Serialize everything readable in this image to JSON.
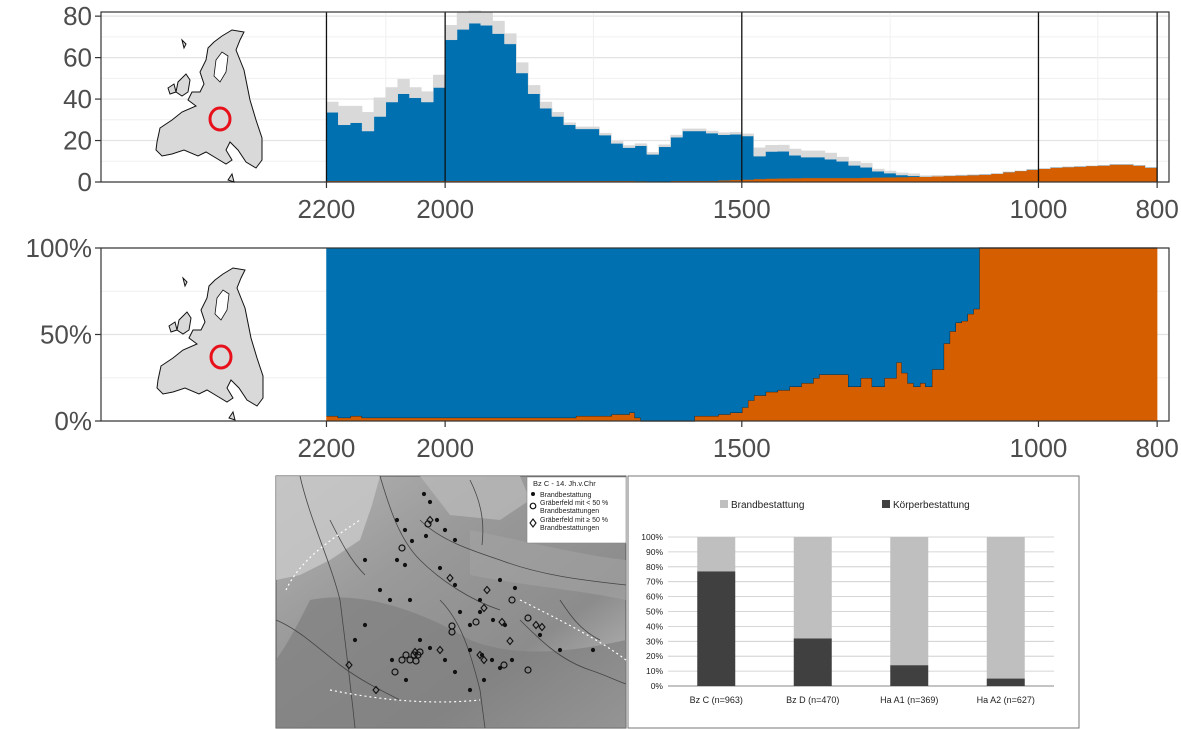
{
  "colors": {
    "blue": "#0070b0",
    "orange": "#d55e00",
    "grey": "#d9d9d9",
    "map_ring": "#e8101a",
    "bar_light": "#bfbfbf",
    "bar_dark": "#404040"
  },
  "chart_data": [
    {
      "type": "area",
      "x_axis": {
        "ticks": [
          2200,
          2000,
          1500,
          1000,
          800
        ],
        "range": [
          2580,
          780
        ],
        "reversed": true
      },
      "y_axis": {
        "ticks": [
          "0",
          "20",
          "40",
          "60",
          "80"
        ],
        "range": [
          0,
          82
        ]
      },
      "grid": true,
      "x": [
        2200,
        2180,
        2160,
        2140,
        2120,
        2100,
        2080,
        2060,
        2040,
        2020,
        2000,
        1980,
        1960,
        1940,
        1920,
        1900,
        1880,
        1860,
        1840,
        1820,
        1800,
        1780,
        1760,
        1740,
        1720,
        1700,
        1680,
        1660,
        1640,
        1620,
        1600,
        1580,
        1560,
        1540,
        1520,
        1500,
        1480,
        1460,
        1440,
        1420,
        1400,
        1380,
        1360,
        1340,
        1320,
        1300,
        1280,
        1260,
        1240,
        1220,
        1200,
        1180,
        1160,
        1140,
        1120,
        1100,
        1080,
        1060,
        1040,
        1020,
        1000,
        980,
        960,
        940,
        920,
        900,
        880,
        860,
        840,
        820,
        800
      ],
      "series": [
        {
          "values": [
            0.6,
            0.6,
            0.6,
            0.6,
            0.6,
            0.6,
            0.6,
            0.6,
            0.6,
            0.6,
            0.6,
            0.6,
            0.6,
            0.6,
            0.6,
            0.6,
            0.6,
            0.6,
            0.6,
            0.6,
            0.6,
            0.6,
            0.6,
            0.6,
            0.6,
            0.6,
            0.5,
            0.3,
            0.0,
            0.6,
            0.6,
            0.6,
            0.6,
            0.8,
            1.0,
            1.2,
            1.5,
            1.7,
            1.8,
            1.9,
            2.0,
            2.0,
            2.0,
            2.0,
            2.0,
            2.1,
            2.2,
            2.3,
            2.4,
            2.5,
            2.6,
            2.8,
            3.0,
            3.2,
            3.4,
            3.6,
            4.0,
            4.8,
            5.4,
            6.0,
            6.4,
            7.0,
            7.3,
            7.5,
            7.8,
            8.0,
            8.5,
            8.5,
            8.0,
            7.0,
            3.0
          ]
        },
        {
          "values": [
            33,
            27,
            28,
            24,
            31,
            38,
            42,
            40,
            38,
            45,
            68,
            73,
            76,
            75,
            71,
            66,
            52,
            42,
            35,
            31,
            27,
            25,
            25,
            22,
            18,
            16,
            17,
            13,
            17,
            21,
            24,
            24,
            23,
            22,
            22,
            21,
            11,
            13,
            13,
            11,
            10,
            10,
            9,
            8,
            6,
            5,
            3,
            2,
            1,
            0.5,
            0,
            0,
            0,
            0,
            0,
            0,
            0,
            0,
            0,
            0,
            0,
            0,
            0,
            0,
            0,
            0,
            0,
            0,
            0,
            0,
            0
          ]
        },
        {
          "values": [
            5,
            9,
            8,
            9,
            9,
            7,
            7,
            5,
            5,
            6,
            7,
            8,
            6,
            6,
            6,
            5,
            5,
            4,
            3,
            2,
            1,
            1,
            1,
            1,
            1,
            1,
            1,
            1,
            1,
            1,
            1,
            1,
            1,
            1,
            1,
            1,
            4,
            3,
            3,
            3,
            3,
            3,
            3,
            2,
            2,
            2,
            1,
            1,
            1,
            1,
            0.5,
            0.5,
            0.3,
            0.2,
            0.2,
            0.1,
            0.1,
            0.1,
            0,
            0,
            0,
            0,
            0,
            0,
            0,
            0,
            0,
            0,
            0,
            0,
            0
          ]
        }
      ]
    },
    {
      "type": "area",
      "x_axis": {
        "ticks": [
          2200,
          2000,
          1500,
          1000,
          800
        ],
        "range": [
          2580,
          780
        ],
        "reversed": true
      },
      "y_axis": {
        "ticks": [
          "0%",
          "50%",
          "100%"
        ],
        "range": [
          0,
          100
        ]
      },
      "grid": true,
      "x": [
        2200,
        2180,
        2160,
        2140,
        2120,
        2100,
        2080,
        2060,
        2040,
        2020,
        2000,
        1980,
        1960,
        1940,
        1920,
        1900,
        1880,
        1860,
        1840,
        1820,
        1800,
        1780,
        1760,
        1740,
        1720,
        1700,
        1690,
        1680,
        1670,
        1660,
        1640,
        1620,
        1600,
        1580,
        1560,
        1540,
        1520,
        1500,
        1490,
        1480,
        1460,
        1440,
        1420,
        1400,
        1380,
        1370,
        1360,
        1340,
        1320,
        1300,
        1280,
        1260,
        1240,
        1230,
        1220,
        1210,
        1200,
        1190,
        1180,
        1170,
        1160,
        1150,
        1140,
        1130,
        1120,
        1110,
        1100,
        1080,
        1060,
        1040,
        1020,
        1000,
        980,
        960,
        940,
        920,
        900,
        880,
        860,
        840,
        820,
        800
      ],
      "series": [
        {
          "values": [
            3,
            2,
            3,
            2,
            2,
            2,
            2,
            2,
            2,
            2,
            2,
            2,
            2,
            2,
            2,
            2,
            2,
            2,
            2,
            2,
            2,
            3,
            3,
            3,
            4,
            4,
            5,
            2,
            0,
            0,
            0,
            0,
            0,
            3,
            3,
            4,
            5,
            8,
            12,
            15,
            17,
            18,
            20,
            22,
            25,
            27,
            27,
            27,
            20,
            25,
            20,
            25,
            34,
            28,
            22,
            20,
            22,
            20,
            30,
            30,
            45,
            52,
            57,
            58,
            62,
            65,
            100,
            100,
            100,
            100,
            100,
            100,
            100,
            100,
            100,
            100,
            100,
            100,
            100,
            100,
            100,
            100
          ]
        },
        {
          "values": [
            97,
            98,
            97,
            98,
            98,
            98,
            98,
            98,
            98,
            98,
            98,
            98,
            98,
            98,
            98,
            98,
            98,
            98,
            98,
            98,
            98,
            97,
            97,
            97,
            96,
            96,
            95,
            98,
            100,
            100,
            100,
            100,
            100,
            97,
            97,
            96,
            95,
            92,
            88,
            85,
            83,
            82,
            80,
            78,
            75,
            73,
            73,
            73,
            80,
            75,
            80,
            75,
            66,
            72,
            78,
            80,
            78,
            80,
            70,
            70,
            55,
            48,
            43,
            42,
            38,
            35,
            0,
            0,
            0,
            0,
            0,
            0,
            0,
            0,
            0,
            0,
            0,
            0,
            0,
            0,
            0,
            0
          ]
        }
      ]
    },
    {
      "type": "bar",
      "stacked": true,
      "categories": [
        "Bz C (n=963)",
        "Bz D (n=470)",
        "Ha A1 (n=369)",
        "Ha A2 (n=627)"
      ],
      "series": [
        {
          "name": "Körperbestattung",
          "values": [
            77,
            32,
            14,
            5
          ]
        },
        {
          "name": "Brandbestattung",
          "values": [
            23,
            68,
            86,
            95
          ]
        }
      ],
      "y_axis": {
        "ticks": [
          "0%",
          "10%",
          "20%",
          "30%",
          "40%",
          "50%",
          "60%",
          "70%",
          "80%",
          "90%",
          "100%"
        ],
        "range": [
          0,
          100
        ]
      },
      "legend": "top",
      "grid": true
    }
  ],
  "map": {
    "legend": {
      "title": "Bz C - 14. Jh.v.Chr",
      "items": [
        "Brandbestattung",
        "Gräberfeld mit < 50 % Brandbestattungen",
        "Gräberfeld mit ≥ 50 % Brandbestattungen"
      ]
    }
  }
}
